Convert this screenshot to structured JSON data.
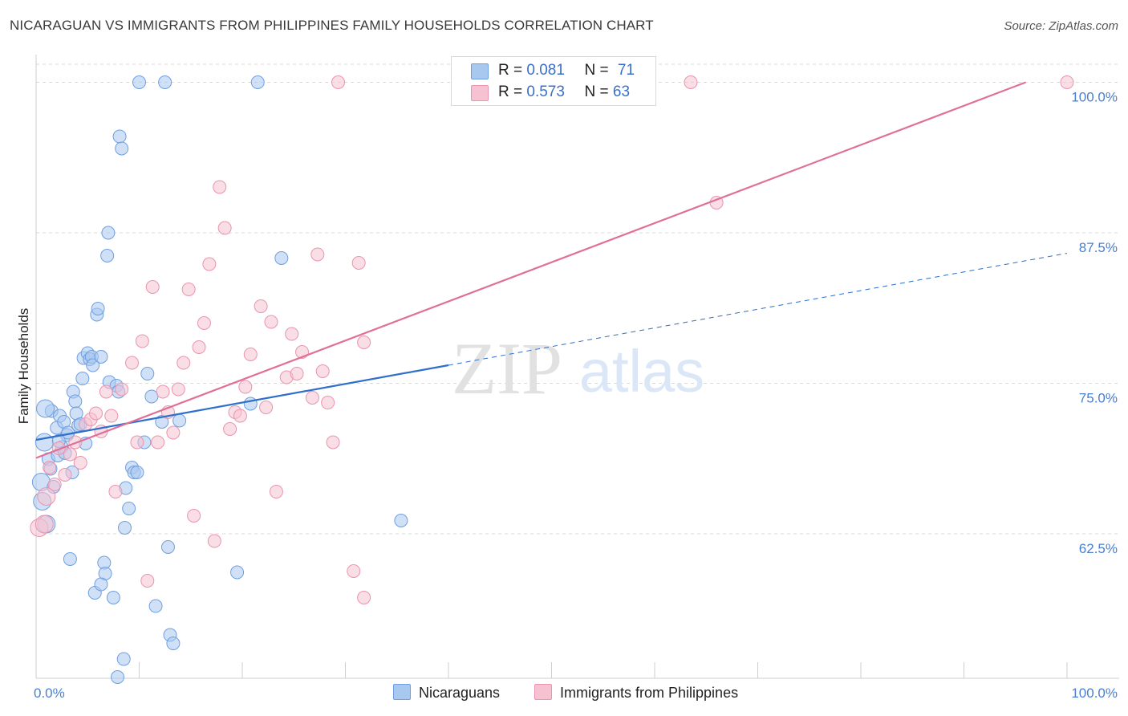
{
  "title": "NICARAGUAN VS IMMIGRANTS FROM PHILIPPINES FAMILY HOUSEHOLDS CORRELATION CHART",
  "source": "Source: ZipAtlas.com",
  "watermark": {
    "zip": "ZIP",
    "atlas": "atlas"
  },
  "colors": {
    "blue_fill": "#a9c8f0",
    "blue_stroke": "#6f9fe0",
    "blue_line": "#2f6fcc",
    "pink_fill": "#f6c2d2",
    "pink_stroke": "#ea94b0",
    "pink_line": "#e07098",
    "grid": "#d9d9d9",
    "axis_text": "#4a7fd0"
  },
  "legend": {
    "rows": [
      {
        "r_label": "R =",
        "r_value": "0.081",
        "n_label": "N =",
        "n_value": "71"
      },
      {
        "r_label": "R =",
        "r_value": "0.573",
        "n_label": "N =",
        "n_value": "63"
      }
    ]
  },
  "bottom_legend": [
    "Nicaraguans",
    "Immigrants from Philippines"
  ],
  "chart_data": {
    "type": "scatter",
    "title": "NICARAGUAN VS IMMIGRANTS FROM PHILIPPINES FAMILY HOUSEHOLDS CORRELATION CHART",
    "xlabel": "",
    "ylabel": "Family Households",
    "xlim": [
      0,
      100
    ],
    "ylim": [
      50.5,
      101.5
    ],
    "x_tick_labels": [
      "0.0%",
      "100.0%"
    ],
    "y_ticks": [
      62.5,
      75.0,
      87.5,
      100.0
    ],
    "y_tick_labels": [
      "62.5%",
      "75.0%",
      "87.5%",
      "100.0%"
    ],
    "grid": true,
    "series": [
      {
        "name": "Nicaraguans",
        "r": 0.081,
        "n": 71,
        "trend": {
          "x0": 0,
          "y0": 70.3,
          "x1": 40,
          "y1": 76.5,
          "dashed_to_x": 100,
          "dashed_to_y": 85.8
        },
        "points": [
          [
            0.8,
            70.1
          ],
          [
            0.5,
            66.8
          ],
          [
            0.6,
            65.2
          ],
          [
            1.0,
            63.3
          ],
          [
            1.2,
            68.7
          ],
          [
            1.4,
            67.9
          ],
          [
            1.5,
            72.7
          ],
          [
            1.7,
            66.4
          ],
          [
            2.0,
            71.3
          ],
          [
            2.1,
            69.0
          ],
          [
            2.3,
            72.3
          ],
          [
            2.5,
            69.7
          ],
          [
            2.7,
            71.8
          ],
          [
            2.8,
            69.2
          ],
          [
            3.0,
            70.7
          ],
          [
            3.1,
            70.9
          ],
          [
            3.3,
            60.4
          ],
          [
            3.5,
            67.6
          ],
          [
            3.6,
            74.3
          ],
          [
            3.8,
            73.5
          ],
          [
            3.9,
            72.5
          ],
          [
            4.1,
            71.5
          ],
          [
            4.3,
            71.6
          ],
          [
            4.5,
            75.4
          ],
          [
            4.6,
            77.1
          ],
          [
            4.8,
            70.0
          ],
          [
            5.0,
            77.5
          ],
          [
            5.2,
            77.0
          ],
          [
            5.4,
            77.2
          ],
          [
            5.5,
            76.5
          ],
          [
            5.7,
            57.6
          ],
          [
            5.9,
            80.7
          ],
          [
            6.0,
            81.2
          ],
          [
            6.3,
            77.2
          ],
          [
            6.6,
            60.1
          ],
          [
            6.7,
            59.2
          ],
          [
            6.9,
            85.6
          ],
          [
            7.0,
            87.5
          ],
          [
            7.1,
            75.1
          ],
          [
            7.5,
            57.2
          ],
          [
            7.8,
            74.8
          ],
          [
            8.0,
            74.3
          ],
          [
            8.1,
            95.5
          ],
          [
            8.3,
            94.5
          ],
          [
            8.5,
            52.1
          ],
          [
            8.6,
            63.0
          ],
          [
            8.7,
            66.3
          ],
          [
            9.0,
            64.6
          ],
          [
            9.3,
            68.0
          ],
          [
            9.5,
            67.6
          ],
          [
            10.0,
            100.0
          ],
          [
            10.5,
            70.1
          ],
          [
            10.8,
            75.8
          ],
          [
            11.2,
            73.9
          ],
          [
            11.6,
            56.5
          ],
          [
            12.2,
            71.8
          ],
          [
            12.5,
            100.0
          ],
          [
            12.8,
            61.4
          ],
          [
            13.0,
            54.1
          ],
          [
            13.3,
            53.4
          ],
          [
            13.9,
            71.9
          ],
          [
            7.9,
            50.6
          ],
          [
            19.5,
            59.3
          ],
          [
            20.8,
            73.3
          ],
          [
            21.5,
            100.0
          ],
          [
            23.8,
            85.4
          ],
          [
            35.4,
            63.6
          ],
          [
            0.9,
            72.9
          ],
          [
            2.2,
            70.2
          ],
          [
            6.3,
            58.3
          ],
          [
            9.8,
            67.6
          ]
        ]
      },
      {
        "name": "Immigrants from Philippines",
        "r": 0.573,
        "n": 63,
        "trend": {
          "x0": 0,
          "y0": 68.8,
          "x1": 96,
          "y1": 100.0
        },
        "points": [
          [
            0.3,
            63.0
          ],
          [
            0.8,
            63.3
          ],
          [
            1.0,
            65.6
          ],
          [
            1.3,
            68.0
          ],
          [
            1.8,
            66.6
          ],
          [
            2.2,
            69.6
          ],
          [
            2.8,
            67.4
          ],
          [
            3.3,
            69.1
          ],
          [
            3.8,
            70.1
          ],
          [
            4.3,
            68.4
          ],
          [
            4.8,
            71.6
          ],
          [
            5.3,
            72.0
          ],
          [
            5.8,
            72.5
          ],
          [
            6.3,
            71.0
          ],
          [
            6.8,
            74.3
          ],
          [
            7.3,
            72.3
          ],
          [
            7.7,
            66.0
          ],
          [
            8.3,
            74.5
          ],
          [
            9.3,
            76.7
          ],
          [
            9.8,
            70.1
          ],
          [
            10.3,
            78.5
          ],
          [
            10.8,
            58.6
          ],
          [
            11.3,
            83.0
          ],
          [
            11.8,
            70.1
          ],
          [
            12.3,
            74.3
          ],
          [
            12.8,
            72.6
          ],
          [
            13.3,
            70.9
          ],
          [
            13.8,
            74.5
          ],
          [
            14.3,
            76.7
          ],
          [
            14.8,
            82.8
          ],
          [
            15.3,
            64.0
          ],
          [
            15.8,
            78.0
          ],
          [
            16.3,
            80.0
          ],
          [
            16.8,
            84.9
          ],
          [
            17.3,
            61.9
          ],
          [
            17.8,
            91.3
          ],
          [
            18.3,
            87.9
          ],
          [
            18.8,
            71.2
          ],
          [
            19.3,
            72.6
          ],
          [
            19.8,
            72.3
          ],
          [
            20.3,
            74.7
          ],
          [
            20.8,
            77.4
          ],
          [
            21.8,
            81.4
          ],
          [
            22.3,
            73.0
          ],
          [
            22.8,
            80.1
          ],
          [
            23.3,
            66.0
          ],
          [
            24.3,
            75.5
          ],
          [
            24.8,
            79.1
          ],
          [
            25.3,
            75.8
          ],
          [
            25.8,
            77.6
          ],
          [
            26.8,
            73.8
          ],
          [
            27.3,
            85.7
          ],
          [
            27.8,
            76.0
          ],
          [
            28.3,
            73.4
          ],
          [
            28.8,
            70.1
          ],
          [
            29.3,
            100.0
          ],
          [
            30.8,
            59.4
          ],
          [
            31.3,
            85.0
          ],
          [
            31.8,
            78.4
          ],
          [
            31.8,
            57.2
          ],
          [
            63.5,
            100.0
          ],
          [
            66.0,
            90.0
          ],
          [
            100.0,
            100.0
          ]
        ]
      }
    ]
  }
}
